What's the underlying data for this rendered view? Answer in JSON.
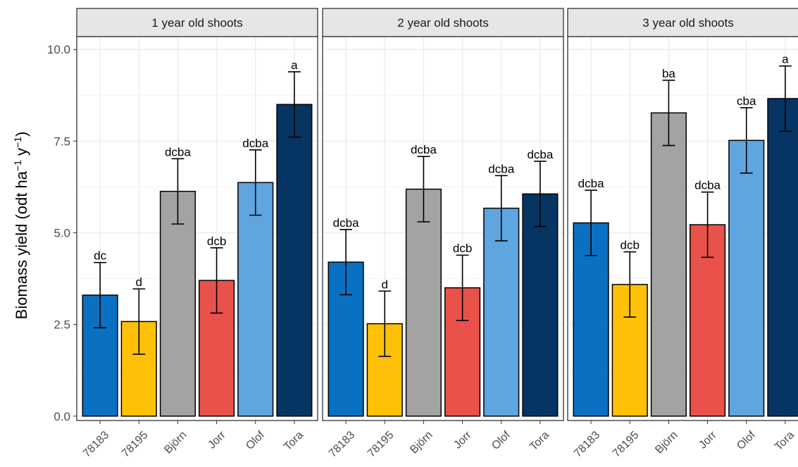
{
  "chart_data": {
    "type": "bar",
    "ylabel": {
      "main": "Biomass yield (odt ha",
      "exp1": "−1",
      "mid": " y",
      "exp2": "−1",
      "close": ")"
    },
    "ylim": [
      -0.12,
      10.35
    ],
    "yticks": [
      0,
      2.5,
      5,
      7.5,
      10
    ],
    "ytick_labels": [
      "0.0",
      "2.5",
      "5.0",
      "7.5",
      "10.0"
    ],
    "grid": true,
    "categories": [
      "78183",
      "78195",
      "Björn",
      "Jorr",
      "Olof",
      "Tora"
    ],
    "colors": {
      "78183": "#0a70c2",
      "78195": "#ffc107",
      "Björn": "#a3a3a3",
      "Jorr": "#e8524a",
      "Olof": "#5fa5e0",
      "Tora": "#063564"
    },
    "facets": [
      {
        "title": "1 year old shoots",
        "values": [
          3.3,
          2.58,
          6.13,
          3.7,
          6.37,
          8.5
        ],
        "errors": [
          0.89,
          0.89,
          0.89,
          0.89,
          0.89,
          0.89
        ],
        "letters": [
          "dc",
          "d",
          "dcba",
          "dcb",
          "dcba",
          "a"
        ]
      },
      {
        "title": "2 year old shoots",
        "values": [
          4.2,
          2.52,
          6.19,
          3.5,
          5.67,
          6.06
        ],
        "errors": [
          0.89,
          0.89,
          0.89,
          0.89,
          0.89,
          0.89
        ],
        "letters": [
          "dcba",
          "d",
          "dcba",
          "dcb",
          "dcba",
          "dcba"
        ]
      },
      {
        "title": "3 year old shoots",
        "values": [
          5.27,
          3.59,
          8.27,
          5.22,
          7.52,
          8.66
        ],
        "errors": [
          0.89,
          0.89,
          0.89,
          0.89,
          0.89,
          0.89
        ],
        "letters": [
          "dcba",
          "dcb",
          "ba",
          "dcba",
          "cba",
          "a"
        ]
      }
    ]
  }
}
